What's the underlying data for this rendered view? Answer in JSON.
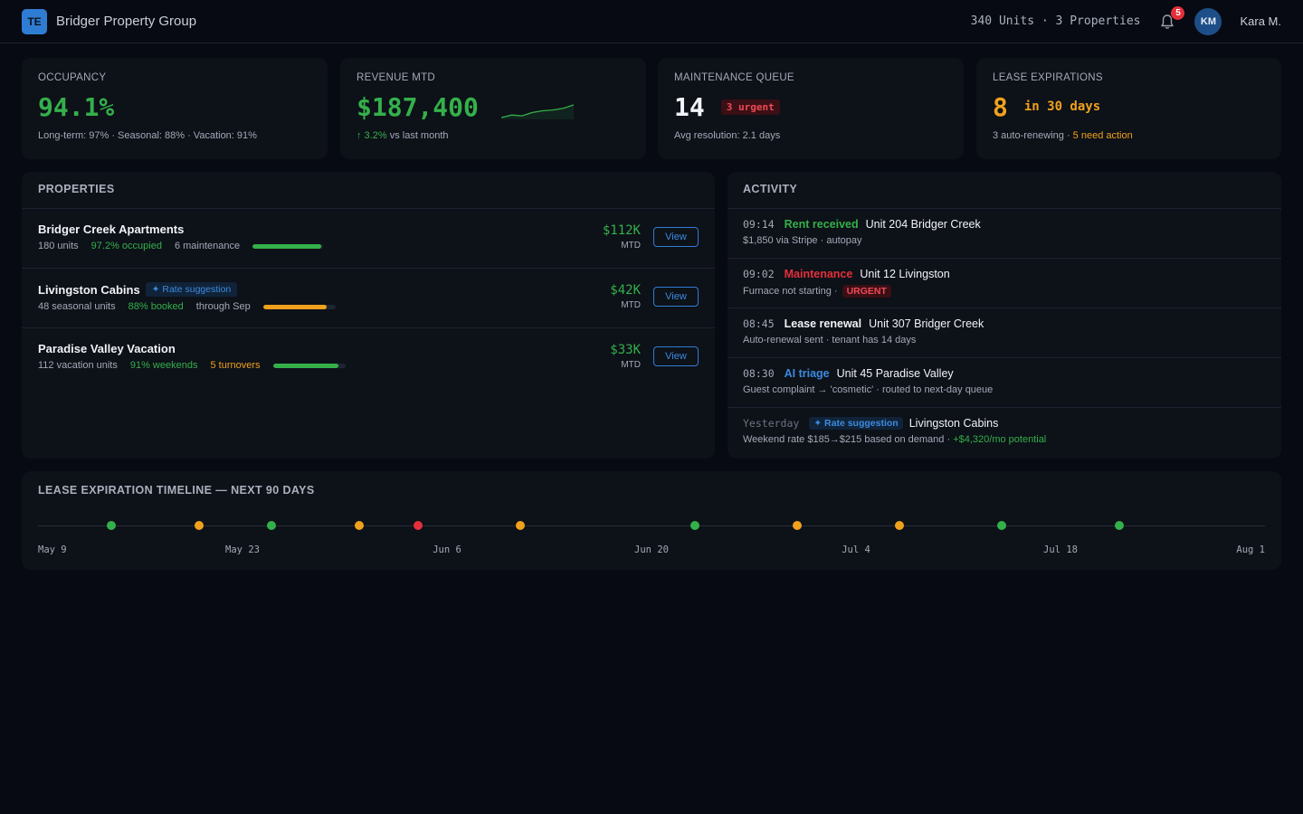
{
  "header": {
    "logo_text": "TE",
    "app_title": "Bridger Property Group",
    "units_summary": "340 Units · 3 Properties",
    "notification_count": "5",
    "avatar_initials": "KM",
    "user_name": "Kara M."
  },
  "stats": {
    "occupancy": {
      "label": "OCCUPANCY",
      "value": "94.1%",
      "sub": "Long-term: 97% · Seasonal: 88% · Vacation: 91%"
    },
    "revenue": {
      "label": "REVENUE MTD",
      "value": "$187,400",
      "change": "↑ 3.2%",
      "change_suffix": " vs last month",
      "sparkline": [
        3,
        4.5,
        4,
        6,
        7,
        7.5,
        8.5,
        10.5
      ]
    },
    "maintenance": {
      "label": "MAINTENANCE QUEUE",
      "value": "14",
      "urgent": "3 urgent",
      "sub": "Avg resolution: 2.1 days"
    },
    "leases": {
      "label": "LEASE EXPIRATIONS",
      "value": "8",
      "window": "in 30 days",
      "sub_a": "3 auto-renewing · ",
      "sub_b": "5 need action"
    }
  },
  "properties": {
    "heading": "PROPERTIES",
    "items": [
      {
        "name": "Bridger Creek Apartments",
        "pill": "",
        "units": "180 units",
        "metric": "97.2% occupied",
        "extra": "6 maintenance",
        "fill": 0.972,
        "amount": "$112K",
        "period": "MTD",
        "button": "View"
      },
      {
        "name": "Livingston Cabins",
        "pill": "✦ Rate suggestion",
        "units": "48 seasonal units",
        "metric": "88% booked",
        "extra": "through Sep",
        "fill": 0.88,
        "amount": "$42K",
        "period": "MTD",
        "button": "View"
      },
      {
        "name": "Paradise Valley Vacation",
        "pill": "",
        "units": "112 vacation units",
        "metric": "91% weekends",
        "extra": "5 turnovers",
        "fill": 0.91,
        "amount": "$33K",
        "period": "MTD",
        "button": "View"
      }
    ]
  },
  "activity": {
    "heading": "ACTIVITY",
    "items": [
      {
        "time": "09:14",
        "kind": "Rent received",
        "target": "Unit 204 Bridger Creek",
        "detail": "$1,850 via Stripe · autopay"
      },
      {
        "time": "09:02",
        "kind": "Maintenance",
        "target": "Unit 12 Livingston",
        "detail": "Furnace not starting ·",
        "tag": "URGENT"
      },
      {
        "time": "08:45",
        "kind": "Lease renewal",
        "target": "Unit 307 Bridger Creek",
        "detail": "Auto-renewal sent · tenant has 14 days"
      },
      {
        "time": "08:30",
        "kind": "AI triage",
        "target": "Unit 45 Paradise Valley",
        "detail": "Guest complaint → 'cosmetic' · routed to next-day queue"
      },
      {
        "time": "Yesterday",
        "kind": "✦ Rate suggestion",
        "target": "Livingston Cabins",
        "detail": "Weekend rate $185→$215 based on demand · ",
        "detail_highlight": "+$4,320/mo potential"
      }
    ]
  },
  "timeline": {
    "heading": "LEASE EXPIRATION TIMELINE — NEXT 90 DAYS",
    "labels": [
      "May 9",
      "May 23",
      "Jun 6",
      "Jun 20",
      "Jul 4",
      "Jul 18",
      "Aug 1"
    ],
    "events": [
      {
        "day": 5,
        "status": "ok"
      },
      {
        "day": 11,
        "status": "pending"
      },
      {
        "day": 16,
        "status": "ok"
      },
      {
        "day": 22,
        "status": "pending"
      },
      {
        "day": 26,
        "status": "urgent"
      },
      {
        "day": 33,
        "status": "pending"
      },
      {
        "day": 45,
        "status": "ok"
      },
      {
        "day": 52,
        "status": "pending"
      },
      {
        "day": 59,
        "status": "pending"
      },
      {
        "day": 66,
        "status": "ok"
      },
      {
        "day": 74,
        "status": "ok"
      }
    ]
  },
  "colors": {
    "ok": "#34b04a",
    "pending": "#f0a11c",
    "urgent": "#e5303a",
    "accent": "#2f7dd3"
  }
}
